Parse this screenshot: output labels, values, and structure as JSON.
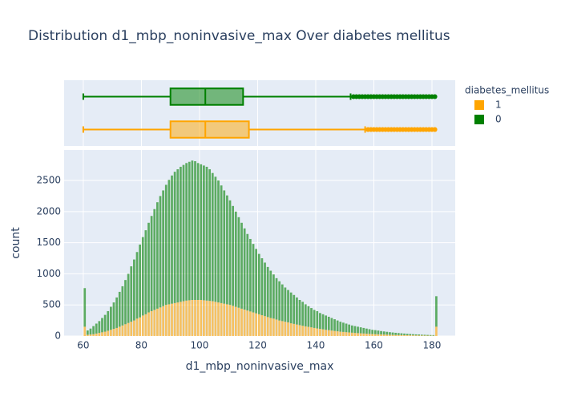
{
  "chart_data": {
    "type": "histogram",
    "title": "Distribution d1_mbp_noninvasive_max Over diabetes mellitus",
    "x_label": "d1_mbp_noninvasive_max",
    "y_label": "count",
    "legend_title": "diabetes_mellitus",
    "legend_position": "right",
    "grid": true,
    "xlim": [
      53.4,
      188
    ],
    "xticks": [
      60,
      80,
      100,
      120,
      140,
      160,
      180
    ],
    "ylim": [
      0,
      2990
    ],
    "yticks": [
      0,
      500,
      1000,
      1500,
      2000,
      2500
    ],
    "bins": [
      60,
      61,
      62,
      63,
      64,
      65,
      66,
      67,
      68,
      69,
      70,
      71,
      72,
      73,
      74,
      75,
      76,
      77,
      78,
      79,
      80,
      81,
      82,
      83,
      84,
      85,
      86,
      87,
      88,
      89,
      90,
      91,
      92,
      93,
      94,
      95,
      96,
      97,
      98,
      99,
      100,
      101,
      102,
      103,
      104,
      105,
      106,
      107,
      108,
      109,
      110,
      111,
      112,
      113,
      114,
      115,
      116,
      117,
      118,
      119,
      120,
      121,
      122,
      123,
      124,
      125,
      126,
      127,
      128,
      129,
      130,
      131,
      132,
      133,
      134,
      135,
      136,
      137,
      138,
      139,
      140,
      141,
      142,
      143,
      144,
      145,
      146,
      147,
      148,
      149,
      150,
      151,
      152,
      153,
      154,
      155,
      156,
      157,
      158,
      159,
      160,
      161,
      162,
      163,
      164,
      165,
      166,
      167,
      168,
      169,
      170,
      171,
      172,
      173,
      174,
      175,
      176,
      177,
      178,
      179,
      180,
      181,
      182
    ],
    "series": [
      {
        "name": "1",
        "color": "#FFA500",
        "values": [
          150,
          20,
          25,
          30,
          40,
          50,
          60,
          70,
          85,
          100,
          115,
          130,
          150,
          170,
          190,
          210,
          230,
          250,
          280,
          300,
          330,
          350,
          380,
          400,
          420,
          440,
          460,
          480,
          500,
          510,
          520,
          530,
          540,
          550,
          560,
          570,
          575,
          580,
          580,
          580,
          580,
          575,
          570,
          565,
          560,
          550,
          540,
          530,
          520,
          510,
          500,
          485,
          470,
          455,
          440,
          425,
          410,
          395,
          380,
          365,
          350,
          335,
          320,
          305,
          290,
          280,
          265,
          250,
          240,
          230,
          220,
          205,
          195,
          185,
          175,
          165,
          155,
          148,
          140,
          130,
          122,
          115,
          108,
          100,
          95,
          88,
          82,
          76,
          70,
          66,
          62,
          58,
          54,
          50,
          47,
          44,
          41,
          38,
          35,
          32,
          30,
          28,
          26,
          24,
          22,
          20,
          18,
          17,
          16,
          15,
          14,
          13,
          12,
          11,
          10,
          9,
          8,
          7,
          6,
          5,
          5,
          150
        ],
        "box": {
          "min": 60,
          "q1": 90,
          "median": 102,
          "q3": 117,
          "max": 157,
          "outliers": [
            158,
            159,
            160,
            161,
            162,
            163,
            164,
            165,
            166,
            167,
            168,
            169,
            170,
            171,
            172,
            173,
            174,
            175,
            176,
            177,
            178,
            179,
            180,
            181
          ]
        }
      },
      {
        "name": "0",
        "color": "#008000",
        "values": [
          620,
          70,
          95,
          130,
          160,
          190,
          230,
          270,
          315,
          370,
          425,
          490,
          560,
          630,
          710,
          790,
          890,
          980,
          1070,
          1170,
          1260,
          1350,
          1440,
          1530,
          1620,
          1710,
          1790,
          1860,
          1930,
          2000,
          2060,
          2110,
          2140,
          2170,
          2190,
          2210,
          2225,
          2240,
          2230,
          2200,
          2180,
          2165,
          2150,
          2115,
          2060,
          2010,
          1960,
          1890,
          1820,
          1750,
          1680,
          1605,
          1530,
          1455,
          1380,
          1305,
          1230,
          1165,
          1100,
          1035,
          970,
          915,
          860,
          805,
          760,
          710,
          665,
          630,
          590,
          550,
          520,
          495,
          465,
          435,
          405,
          385,
          355,
          332,
          310,
          290,
          278,
          255,
          242,
          230,
          215,
          202,
          188,
          174,
          160,
          149,
          138,
          127,
          116,
          110,
          103,
          96,
          89,
          82,
          75,
          68,
          65,
          60,
          54,
          50,
          46,
          42,
          39,
          35,
          32,
          29,
          26,
          23,
          21,
          19,
          17,
          16,
          14,
          13,
          12,
          11,
          10,
          490
        ],
        "box": {
          "min": 60,
          "q1": 90,
          "median": 102,
          "q3": 115,
          "max": 152,
          "outliers": [
            153,
            154,
            155,
            156,
            157,
            158,
            159,
            160,
            161,
            162,
            163,
            164,
            165,
            166,
            167,
            168,
            169,
            170,
            171,
            172,
            173,
            174,
            175,
            176,
            177,
            178,
            179,
            180,
            181
          ]
        }
      }
    ]
  }
}
